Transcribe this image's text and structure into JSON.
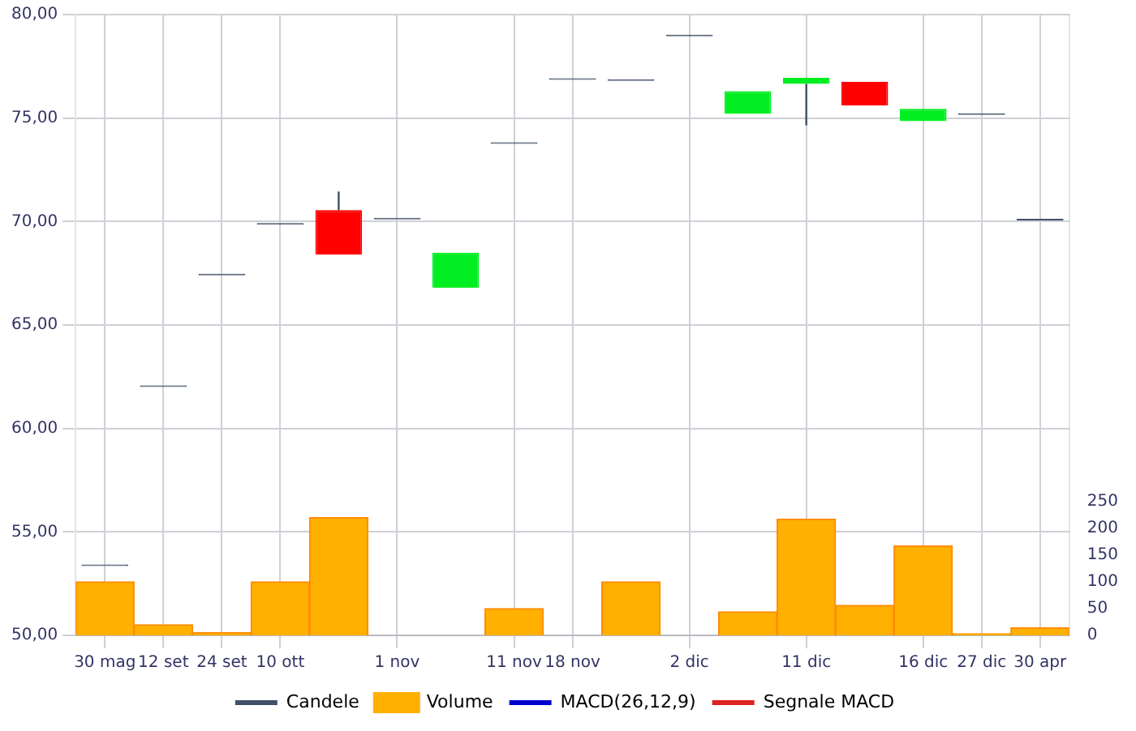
{
  "chart_data": {
    "type": "candlestick",
    "categories": [
      "30 mag",
      "12 set",
      "24 set",
      "10 ott",
      null,
      "1 nov",
      null,
      "11 nov",
      "18 nov",
      null,
      "2 dic",
      null,
      "11 dic",
      null,
      "16 dic",
      "27 dic",
      "30 apr"
    ],
    "series": [
      {
        "name": "Candele",
        "color": "#405068",
        "colors": [
          "#405068",
          "#405068",
          "#405068",
          "#405068",
          "#ff0000",
          "#405068",
          "#00ee22",
          "#405068",
          "#405068",
          "#405068",
          "#405068",
          "#00ee22",
          "#00ee22",
          "#ff0000",
          "#00ee22",
          "#405068",
          "#405068"
        ],
        "ohlc": [
          [
            53.35,
            53.35,
            53.35,
            53.35
          ],
          [
            62.0,
            62.0,
            62.0,
            62.0
          ],
          [
            67.4,
            67.4,
            67.4,
            67.4
          ],
          [
            69.85,
            69.85,
            69.85,
            69.85
          ],
          [
            70.55,
            71.45,
            68.4,
            68.4
          ],
          [
            70.1,
            70.1,
            70.1,
            70.1
          ],
          [
            66.8,
            68.5,
            66.8,
            68.5
          ],
          [
            73.75,
            73.75,
            73.75,
            73.75
          ],
          [
            76.85,
            76.85,
            76.85,
            76.85
          ],
          [
            76.8,
            76.8,
            76.8,
            76.8
          ],
          [
            78.95,
            78.95,
            78.95,
            78.95
          ],
          [
            75.2,
            76.3,
            75.2,
            76.3
          ],
          [
            76.65,
            76.95,
            74.65,
            76.95
          ],
          [
            76.75,
            76.75,
            75.6,
            75.6
          ],
          [
            74.85,
            75.45,
            74.85,
            75.45
          ],
          [
            75.15,
            75.15,
            75.15,
            75.15
          ],
          [
            70.05,
            70.05,
            70.05,
            70.05
          ]
        ]
      },
      {
        "name": "Volume",
        "type": "bar",
        "axis": "y2",
        "color": "#ffb000",
        "values": [
          100,
          20,
          5,
          100,
          220,
          0,
          0,
          50,
          0,
          100,
          0,
          44,
          217,
          56,
          167,
          3,
          14
        ]
      },
      {
        "name": "MACD(26,12,9)",
        "type": "line",
        "color": "#0000cc",
        "values": [
          null,
          null,
          null,
          null,
          null,
          null,
          null,
          null,
          null,
          null,
          null,
          null,
          null,
          null,
          null,
          null,
          null
        ]
      },
      {
        "name": "Segnale MACD",
        "type": "line",
        "color": "#dd2222",
        "values": [
          null,
          null,
          null,
          null,
          null,
          null,
          null,
          null,
          null,
          null,
          null,
          null,
          null,
          null,
          null,
          null,
          null
        ]
      }
    ],
    "ylim": [
      50,
      80
    ],
    "yticks": [
      {
        "value": 50,
        "label": "50,00"
      },
      {
        "value": 55,
        "label": "55,00"
      },
      {
        "value": 60,
        "label": "60,00"
      },
      {
        "value": 65,
        "label": "65,00"
      },
      {
        "value": 70,
        "label": "70,00"
      },
      {
        "value": 75,
        "label": "75,00"
      },
      {
        "value": 80,
        "label": "80,00"
      }
    ],
    "y2lim": [
      0,
      1160
    ],
    "y2ticks": [
      0,
      50,
      100,
      150,
      200,
      250
    ],
    "grid": true,
    "legend": "bottom"
  }
}
